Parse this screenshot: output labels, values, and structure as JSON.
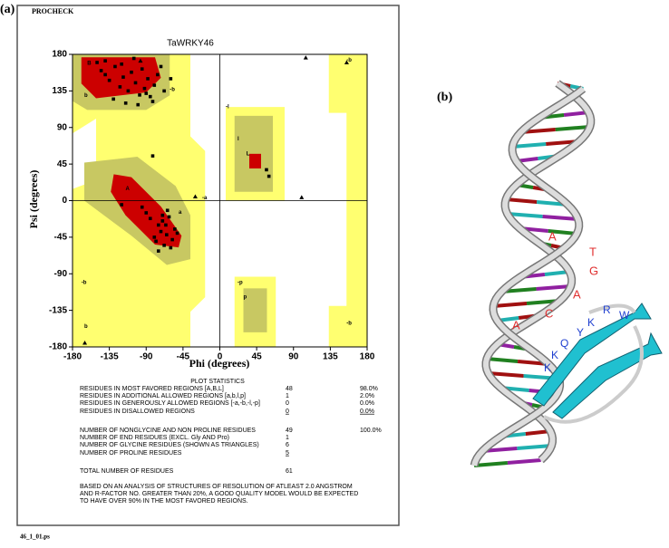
{
  "panel_a": {
    "label": "(a)",
    "program": "PROCHECK",
    "footer": "46_1_01.ps"
  },
  "chart_data": {
    "type": "scatter",
    "title": "TaWRKY46",
    "x_label": "Phi (degrees)",
    "y_label": "Psi (degrees)",
    "xlim": [
      -180,
      180
    ],
    "ylim": [
      -180,
      180
    ],
    "xticks": [
      -180,
      -135,
      -90,
      -45,
      0,
      45,
      90,
      135,
      180
    ],
    "yticks": [
      -180,
      -135,
      -90,
      -45,
      0,
      45,
      90,
      135,
      180
    ],
    "region_labels": [
      "B",
      "b",
      "-b",
      "-b",
      "A",
      "a",
      "-a",
      "L",
      "l",
      "-l",
      "p",
      "-p",
      "-b",
      "-b",
      "b"
    ],
    "x": [
      -150,
      -145,
      -140,
      -135,
      -128,
      -122,
      -118,
      -112,
      -108,
      -103,
      -98,
      -95,
      -92,
      -88,
      -85,
      -80,
      -76,
      -72,
      -130,
      -115,
      -100,
      -90,
      -140,
      -120,
      -105,
      -82,
      -68,
      -60,
      -55,
      -52,
      -65,
      -70,
      -75,
      -80,
      -62,
      -58,
      -68,
      -72,
      -85,
      -90,
      -78,
      -66,
      -95,
      -60,
      -64,
      -70,
      -75,
      -120,
      57,
      60,
      -82
    ],
    "values": [
      170,
      160,
      155,
      148,
      165,
      140,
      152,
      135,
      158,
      145,
      130,
      162,
      138,
      150,
      128,
      142,
      155,
      165,
      125,
      120,
      118,
      132,
      172,
      168,
      175,
      122,
      135,
      150,
      -35,
      -40,
      -42,
      -25,
      -30,
      -45,
      -20,
      -48,
      -55,
      -38,
      -22,
      -15,
      -50,
      -30,
      -8,
      -58,
      -12,
      -18,
      -62,
      -5,
      38,
      30,
      55
    ],
    "glycine_x": [
      105,
      100,
      -165,
      -97,
      155,
      -30
    ],
    "glycine_y": [
      176,
      4,
      -175,
      172,
      170,
      5
    ]
  },
  "statistics": {
    "title": "PLOT STATISTICS",
    "rows": [
      [
        "RESIDUES IN MOST FAVORED REGIONS [A,B,L]",
        "48",
        "98.0%"
      ],
      [
        "RESIDUES IN ADDITIONAL ALLOWED REGIONS [a,b,l,p]",
        "1",
        "2.0%"
      ],
      [
        "RESIDUES IN GENEROUSLY ALLOWED REGIONS [-a,-b,-l,-p]",
        "0",
        "0.0%"
      ],
      [
        "RESIDUES IN DISALLOWED REGIONS",
        "0",
        "0.0%"
      ],
      [
        "NUMBER OF NONGLYCINE AND NON PROLINE RESIDUES",
        "49",
        "100.0%"
      ],
      [
        "NUMBER OF END RESIDUES (EXCL. Gly AND Pro)",
        "1"
      ],
      [
        "NUMBER OF GLYCINE RESIDUES (SHOWN AS TRIANGLES)",
        "6"
      ],
      [
        "NUMBER OF PROLINE RESIDUES",
        "5"
      ],
      [
        "TOTAL NUMBER OF RESIDUES",
        "61"
      ]
    ],
    "note": [
      "BASED ON AN ANALYSIS OF STRUCTURES OF RESOLUTION OF ATLEAST 2.0 ANGSTROM",
      "AND R-FACTOR NO. GREATER THAN 20%, A GOOD  QUALITY MODEL WOULD BE EXPECTED",
      "TO HAVE OVER 90% IN THE MOST FAVORED REGIONS."
    ]
  },
  "panel_b": {
    "label": "(b)",
    "dna_letters": [
      "A",
      "T",
      "G",
      "A",
      "C",
      "A"
    ],
    "protein_letters": [
      "R",
      "W",
      "K",
      "Y",
      "Q",
      "K",
      "K"
    ]
  }
}
